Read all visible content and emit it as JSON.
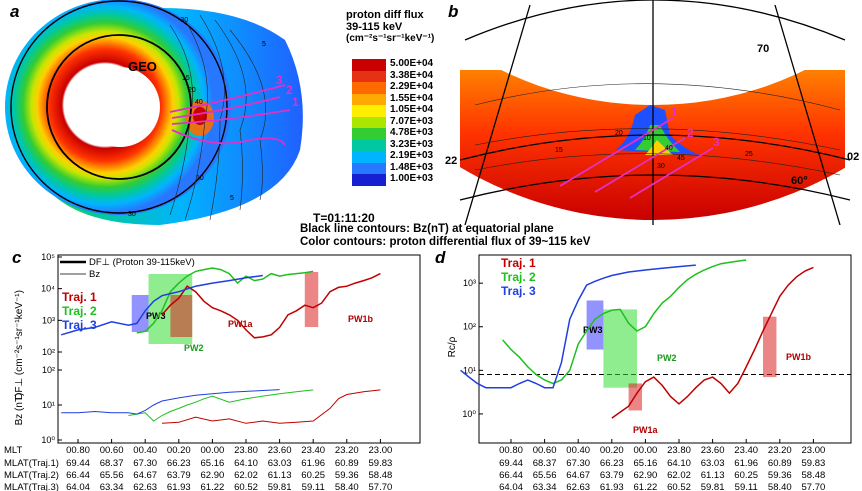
{
  "panels": {
    "a": {
      "label": "a",
      "geo_label": "GEO",
      "contour_labels": [
        "-30",
        "15",
        "20",
        "10",
        "5",
        "40",
        "5",
        "30"
      ],
      "traj_labels": [
        "3",
        "2",
        "1"
      ]
    },
    "b": {
      "label": "b",
      "lat_labels": [
        "70",
        "60°"
      ],
      "mlt_labels": [
        "22",
        "00",
        "02"
      ],
      "contour_labels": [
        "15",
        "20",
        "25",
        "30",
        "10",
        "40",
        "45"
      ],
      "traj_labels": [
        "1",
        "2",
        "3"
      ]
    },
    "colorbar": {
      "title_lines": [
        "proton diff flux",
        "39-115 keV",
        "(cm⁻²s⁻¹sr⁻¹keV⁻¹)"
      ],
      "ticks": [
        "5.00E+04",
        "3.38E+04",
        "2.29E+04",
        "1.55E+04",
        "1.05E+04",
        "7.07E+03",
        "4.78E+03",
        "3.23E+03",
        "2.19E+03",
        "1.48E+03",
        "1.00E+03"
      ],
      "colors": [
        "#c80000",
        "#e63214",
        "#ff6a00",
        "#ffaa00",
        "#ffee00",
        "#aae600",
        "#33cc33",
        "#00c8a0",
        "#00b4ff",
        "#2878ff",
        "#1420d2"
      ]
    },
    "caption": {
      "time": "T=01:11:20",
      "line1": "Black line contours: Bz(nT) at equatorial plane",
      "line2": "Color contours: proton differential flux of 39~115 keV"
    }
  },
  "mlt_table": {
    "row_labels": [
      "MLT",
      "MLAT(Traj.1)",
      "MLAT(Traj.2)",
      "MLAT(Traj.3)"
    ],
    "rows": [
      [
        "00.80",
        "00.60",
        "00.40",
        "00.20",
        "00.00",
        "23.80",
        "23.60",
        "23.40",
        "23.20",
        "23.00"
      ],
      [
        "69.44",
        "68.37",
        "67.30",
        "66.23",
        "65.16",
        "64.10",
        "63.03",
        "61.96",
        "60.89",
        "59.83"
      ],
      [
        "66.44",
        "65.56",
        "64.67",
        "63.79",
        "62.90",
        "62.02",
        "61.13",
        "60.25",
        "59.36",
        "58.48"
      ],
      [
        "64.04",
        "63.34",
        "62.63",
        "61.93",
        "61.22",
        "60.52",
        "59.81",
        "59.11",
        "58.40",
        "57.70"
      ]
    ]
  },
  "chart_data": [
    {
      "panel": "c",
      "type": "line",
      "title": "",
      "legend": [
        "DF⊥ (Proton 39-115keV)",
        "Bz"
      ],
      "series_labels": [
        "Traj. 1",
        "Traj. 2",
        "Traj. 3"
      ],
      "series_colors": [
        "#c00000",
        "#1fbf1f",
        "#1f3fe0"
      ],
      "upper": {
        "ylabel": "DF⊥ (cm⁻²s⁻¹sr⁻¹keV⁻¹)",
        "yscale": "log",
        "ylim": [
          100,
          100000
        ],
        "yticks": [
          "10²",
          "10³",
          "10⁴",
          "10⁵"
        ],
        "series": [
          {
            "name": "Traj. 1",
            "x": [
              0.3,
              0.25,
              0.2,
              0.15,
              0.1,
              0.05,
              0.0,
              -0.05,
              -0.1,
              -0.15,
              -0.2,
              -0.25,
              -0.3,
              -0.35,
              -0.4,
              -0.45,
              -0.5,
              -0.55,
              -0.6,
              -0.65,
              -0.7,
              -0.75,
              -0.8,
              -0.85,
              -0.9,
              -0.95,
              -1.0
            ],
            "values": [
              1500,
              3000,
              5000,
              12000,
              8000,
              4000,
              2500,
              2000,
              1500,
              1000,
              500,
              280,
              300,
              350,
              600,
              1500,
              2000,
              3000,
              2500,
              3500,
              8000,
              11000,
              12000,
              15000,
              18000,
              22000,
              30000
            ]
          },
          {
            "name": "Traj. 2",
            "x": [
              0.45,
              0.4,
              0.35,
              0.3,
              0.25,
              0.2,
              0.15,
              0.1,
              0.05,
              0.0,
              -0.05,
              -0.1,
              -0.15,
              -0.2,
              -0.25,
              -0.3,
              -0.35,
              -0.4,
              -0.45,
              -0.5,
              -0.55,
              -0.6
            ],
            "values": [
              400,
              450,
              800,
              2000,
              8000,
              15000,
              25000,
              35000,
              40000,
              45000,
              40000,
              30000,
              15000,
              25000,
              18000,
              20000,
              30000,
              25000,
              28000,
              30000,
              32000,
              35000
            ]
          },
          {
            "name": "Traj. 3",
            "x": [
              0.9,
              0.8,
              0.7,
              0.6,
              0.5,
              0.45,
              0.4,
              0.35,
              0.3,
              0.25,
              0.2,
              0.1,
              0.0,
              -0.1,
              -0.2,
              -0.3
            ],
            "values": [
              350,
              500,
              600,
              900,
              700,
              800,
              2000,
              4000,
              6000,
              7000,
              8000,
              12000,
              15000,
              18000,
              22000,
              26000
            ]
          }
        ]
      },
      "lower": {
        "ylabel": "Bz (nT)",
        "yscale": "log",
        "ylim": [
          1,
          100
        ],
        "yticks": [
          "10⁰",
          "10¹",
          "10²"
        ],
        "series": [
          {
            "name": "Traj. 1",
            "x": [
              0.3,
              0.2,
              0.1,
              0.0,
              -0.1,
              -0.2,
              -0.3,
              -0.4,
              -0.5,
              -0.6,
              -0.7,
              -0.75,
              -0.8,
              -0.9,
              -1.0
            ],
            "values": [
              3.0,
              3.2,
              4.5,
              3.5,
              4.0,
              3.0,
              3.5,
              3.0,
              3.2,
              3.5,
              8.0,
              15,
              20,
              24,
              27
            ]
          },
          {
            "name": "Traj. 2",
            "x": [
              0.5,
              0.4,
              0.35,
              0.3,
              0.25,
              0.2,
              0.15,
              0.1,
              0.05,
              0.0,
              -0.1,
              -0.2,
              -0.3,
              -0.4,
              -0.5,
              -0.6
            ],
            "values": [
              5.0,
              6.0,
              3.5,
              5.0,
              6.5,
              8.0,
              10,
              12,
              15,
              18,
              12,
              15,
              18,
              21,
              24,
              27
            ]
          },
          {
            "name": "Traj. 3",
            "x": [
              0.9,
              0.8,
              0.7,
              0.6,
              0.5,
              0.45,
              0.4,
              0.35,
              0.3,
              0.2,
              0.1,
              0.0,
              -0.1,
              -0.2,
              -0.3,
              -0.4
            ],
            "values": [
              6.0,
              6.0,
              6.5,
              6.0,
              6.0,
              5.5,
              7.0,
              10,
              13,
              16,
              19,
              21,
              23,
              24.5,
              26,
              27.5
            ]
          }
        ]
      },
      "annotations": [
        "PW3",
        "PW2",
        "PW1a",
        "PW1b"
      ]
    },
    {
      "panel": "d",
      "type": "line",
      "title": "",
      "ylabel": "Rc/ρ",
      "yscale": "log",
      "ylim": [
        0.5,
        5000
      ],
      "yticks": [
        "10⁰",
        "10¹",
        "10²",
        "10³"
      ],
      "threshold": 8,
      "series_labels": [
        "Traj. 1",
        "Traj. 2",
        "Traj. 3"
      ],
      "series_colors": [
        "#c00000",
        "#1fbf1f",
        "#1f3fe0"
      ],
      "series": [
        {
          "name": "Traj. 1",
          "x": [
            0.2,
            0.15,
            0.1,
            0.05,
            0.0,
            -0.05,
            -0.1,
            -0.15,
            -0.2,
            -0.25,
            -0.3,
            -0.35,
            -0.4,
            -0.45,
            -0.5,
            -0.55,
            -0.6,
            -0.65,
            -0.7,
            -0.75,
            -0.8,
            -0.85,
            -0.9,
            -0.95,
            -1.0
          ],
          "values": [
            0.8,
            1.1,
            1.5,
            3.0,
            5.5,
            7.0,
            4.5,
            2.5,
            1.7,
            2.5,
            4.0,
            6.0,
            7.0,
            5.0,
            3.0,
            5.0,
            12,
            30,
            80,
            200,
            500,
            900,
            1400,
            1900,
            2300
          ]
        },
        {
          "name": "Traj. 2",
          "x": [
            0.85,
            0.8,
            0.75,
            0.7,
            0.65,
            0.6,
            0.55,
            0.5,
            0.45,
            0.4,
            0.35,
            0.3,
            0.25,
            0.2,
            0.15,
            0.1,
            0.05,
            0.0,
            -0.05,
            -0.1,
            -0.15,
            -0.2,
            -0.25,
            -0.3,
            -0.35,
            -0.4,
            -0.45,
            -0.5,
            -0.55,
            -0.6
          ],
          "values": [
            50,
            30,
            20,
            12,
            8,
            6,
            5,
            6,
            10,
            40,
            80,
            150,
            200,
            240,
            250,
            120,
            80,
            100,
            200,
            350,
            500,
            800,
            1200,
            1600,
            2000,
            2400,
            2800,
            3000,
            3200,
            3400
          ]
        },
        {
          "name": "Traj. 3",
          "x": [
            1.1,
            1.05,
            1.0,
            0.95,
            0.9,
            0.85,
            0.8,
            0.75,
            0.7,
            0.65,
            0.6,
            0.55,
            0.5,
            0.45,
            0.4,
            0.35,
            0.3,
            0.25,
            0.2,
            0.1,
            0.0,
            -0.1,
            -0.2,
            -0.3
          ],
          "values": [
            10,
            7,
            5,
            4,
            4,
            4,
            4,
            5,
            6,
            5,
            4,
            4,
            15,
            150,
            400,
            900,
            1100,
            1300,
            1500,
            1800,
            2000,
            2200,
            2400,
            2600
          ]
        }
      ],
      "annotations": [
        "PW3",
        "PW2",
        "PW1a",
        "PW1b"
      ]
    }
  ]
}
